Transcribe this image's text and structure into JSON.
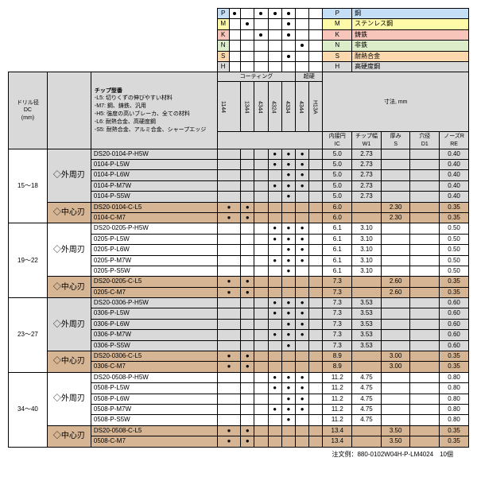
{
  "materials": [
    {
      "code": "P",
      "color": "blue",
      "name": "鋼",
      "dots": [
        "●",
        "",
        "●",
        "●",
        "●",
        ""
      ]
    },
    {
      "code": "M",
      "color": "yellow",
      "name": "ステンレス鋼",
      "dots": [
        "",
        "●",
        "",
        "",
        "●",
        ""
      ]
    },
    {
      "code": "K",
      "color": "red",
      "name": "鋳鉄",
      "dots": [
        "",
        "",
        "●",
        "",
        "●",
        ""
      ]
    },
    {
      "code": "N",
      "color": "green",
      "name": "非鉄",
      "dots": [
        "",
        "",
        "",
        "",
        "",
        "●"
      ]
    },
    {
      "code": "S",
      "color": "orange",
      "name": "耐熱合金",
      "dots": [
        "",
        "",
        "",
        "",
        "●",
        ""
      ]
    },
    {
      "code": "H",
      "color": "gray",
      "name": "高硬度鋼",
      "dots": [
        "",
        "",
        "",
        "",
        "",
        ""
      ]
    }
  ],
  "col_headers": {
    "drill": "ドリル径\nDC\n(mm)",
    "chip_title": "チップ型番",
    "notes": "-L5: 切りくずの伸びやすい材料\n-M7: 鋼、鋳鉄、汎用\n-H5: 強度の高いブレーカ、全ての材料\n-L6: 耐熱合金、高硬度鋼\n-S5: 耐熱合金、アルミ合金、シャープエッジ",
    "coating": "コーティング",
    "carbide": "超硬",
    "dims": "寸法, mm",
    "grades": [
      "1144",
      "1344",
      "4344",
      "4324",
      "4334",
      "4344",
      "H13A"
    ],
    "dim_labels": [
      [
        "内接円",
        "IC"
      ],
      [
        "チップ幅",
        "W1"
      ],
      [
        "厚み",
        "S"
      ],
      [
        "穴径",
        "D1"
      ],
      [
        "ノーズR",
        "RE"
      ]
    ]
  },
  "groups": [
    {
      "dc": "15～18",
      "outer": "◇外周刃",
      "inner": "◇中心刃",
      "outer_color": "gray",
      "inner_color": "tan",
      "outer_rows": [
        {
          "chip": "DS20-0104-P-H5W",
          "g": [
            "",
            "",
            "",
            "●",
            "●",
            "●",
            ""
          ],
          "d": [
            "5.0",
            "2.73",
            "",
            "",
            "0.40"
          ]
        },
        {
          "chip": "0104-P-L5W",
          "g": [
            "",
            "",
            "",
            "●",
            "●",
            "●",
            ""
          ],
          "d": [
            "5.0",
            "2.73",
            "",
            "",
            "0.40"
          ]
        },
        {
          "chip": "0104-P-L6W",
          "g": [
            "",
            "",
            "",
            "",
            "●",
            "●",
            ""
          ],
          "d": [
            "5.0",
            "2.73",
            "",
            "",
            "0.40"
          ]
        },
        {
          "chip": "0104-P-M7W",
          "g": [
            "",
            "",
            "",
            "●",
            "●",
            "●",
            ""
          ],
          "d": [
            "5.0",
            "2.73",
            "",
            "",
            "0.40"
          ]
        },
        {
          "chip": "0104-P-S5W",
          "g": [
            "",
            "",
            "",
            "",
            "●",
            "",
            ""
          ],
          "d": [
            "5.0",
            "2.73",
            "",
            "",
            "0.40"
          ]
        }
      ],
      "inner_rows": [
        {
          "chip": "DS20-0104-C-L5",
          "g": [
            "●",
            "●",
            "",
            "",
            "",
            "",
            ""
          ],
          "d": [
            "6.0",
            "",
            "2.30",
            "",
            "0.35"
          ]
        },
        {
          "chip": "0104-C-M7",
          "g": [
            "●",
            "●",
            "",
            "",
            "",
            "",
            ""
          ],
          "d": [
            "6.0",
            "",
            "2.30",
            "",
            "0.35"
          ]
        }
      ]
    },
    {
      "dc": "19～22",
      "outer": "◇外周刃",
      "inner": "◇中心刃",
      "outer_color": "",
      "inner_color": "tan",
      "outer_rows": [
        {
          "chip": "DS20-0205-P-H5W",
          "g": [
            "",
            "",
            "",
            "●",
            "●",
            "●",
            ""
          ],
          "d": [
            "6.1",
            "3.10",
            "",
            "",
            "0.50"
          ]
        },
        {
          "chip": "0205-P-L5W",
          "g": [
            "",
            "",
            "",
            "●",
            "●",
            "●",
            ""
          ],
          "d": [
            "6.1",
            "3.10",
            "",
            "",
            "0.50"
          ]
        },
        {
          "chip": "0205-P-L6W",
          "g": [
            "",
            "",
            "",
            "",
            "●",
            "●",
            ""
          ],
          "d": [
            "6.1",
            "3.10",
            "",
            "",
            "0.50"
          ]
        },
        {
          "chip": "0205-P-M7W",
          "g": [
            "",
            "",
            "",
            "●",
            "●",
            "●",
            ""
          ],
          "d": [
            "6.1",
            "3.10",
            "",
            "",
            "0.50"
          ]
        },
        {
          "chip": "0205-P-S5W",
          "g": [
            "",
            "",
            "",
            "",
            "●",
            "",
            ""
          ],
          "d": [
            "6.1",
            "3.10",
            "",
            "",
            "0.50"
          ]
        }
      ],
      "inner_rows": [
        {
          "chip": "DS20-0205-C-L5",
          "g": [
            "●",
            "●",
            "",
            "",
            "",
            "",
            ""
          ],
          "d": [
            "7.3",
            "",
            "2.60",
            "",
            "0.35"
          ]
        },
        {
          "chip": "0205-C-M7",
          "g": [
            "●",
            "●",
            "",
            "",
            "",
            "",
            ""
          ],
          "d": [
            "7.3",
            "",
            "2.60",
            "",
            "0.35"
          ]
        }
      ]
    },
    {
      "dc": "23～27",
      "outer": "◇外周刃",
      "inner": "◇中心刃",
      "outer_color": "gray",
      "inner_color": "tan",
      "outer_rows": [
        {
          "chip": "DS20-0306-P-H5W",
          "g": [
            "",
            "",
            "",
            "●",
            "●",
            "●",
            ""
          ],
          "d": [
            "7.3",
            "3.53",
            "",
            "",
            "0.60"
          ]
        },
        {
          "chip": "0306-P-L5W",
          "g": [
            "",
            "",
            "",
            "●",
            "●",
            "●",
            ""
          ],
          "d": [
            "7.3",
            "3.53",
            "",
            "",
            "0.60"
          ]
        },
        {
          "chip": "0306-P-L6W",
          "g": [
            "",
            "",
            "",
            "",
            "●",
            "●",
            ""
          ],
          "d": [
            "7.3",
            "3.53",
            "",
            "",
            "0.60"
          ]
        },
        {
          "chip": "0306-P-M7W",
          "g": [
            "",
            "",
            "",
            "●",
            "●",
            "●",
            ""
          ],
          "d": [
            "7.3",
            "3.53",
            "",
            "",
            "0.60"
          ]
        },
        {
          "chip": "0306-P-S5W",
          "g": [
            "",
            "",
            "",
            "",
            "●",
            "",
            ""
          ],
          "d": [
            "7.3",
            "3.53",
            "",
            "",
            "0.60"
          ]
        }
      ],
      "inner_rows": [
        {
          "chip": "DS20-0306-C-L5",
          "g": [
            "●",
            "●",
            "",
            "",
            "",
            "",
            ""
          ],
          "d": [
            "8.9",
            "",
            "3.00",
            "",
            "0.35"
          ]
        },
        {
          "chip": "0306-C-M7",
          "g": [
            "●",
            "●",
            "",
            "",
            "",
            "",
            ""
          ],
          "d": [
            "8.9",
            "",
            "3.00",
            "",
            "0.35"
          ]
        }
      ]
    },
    {
      "dc": "34～40",
      "outer": "◇外周刃",
      "inner": "◇中心刃",
      "outer_color": "",
      "inner_color": "tan",
      "outer_rows": [
        {
          "chip": "DS20-0508-P-H5W",
          "g": [
            "",
            "",
            "",
            "●",
            "●",
            "●",
            ""
          ],
          "d": [
            "11.2",
            "4.75",
            "",
            "",
            "0.80"
          ]
        },
        {
          "chip": "0508-P-L5W",
          "g": [
            "",
            "",
            "",
            "●",
            "●",
            "●",
            ""
          ],
          "d": [
            "11.2",
            "4.75",
            "",
            "",
            "0.80"
          ]
        },
        {
          "chip": "0508-P-L6W",
          "g": [
            "",
            "",
            "",
            "",
            "●",
            "●",
            ""
          ],
          "d": [
            "11.2",
            "4.75",
            "",
            "",
            "0.80"
          ]
        },
        {
          "chip": "0508-P-M7W",
          "g": [
            "",
            "",
            "",
            "●",
            "●",
            "●",
            ""
          ],
          "d": [
            "11.2",
            "4.75",
            "",
            "",
            "0.80"
          ]
        },
        {
          "chip": "0508-P-S5W",
          "g": [
            "",
            "",
            "",
            "",
            "●",
            "",
            ""
          ],
          "d": [
            "11.2",
            "4.75",
            "",
            "",
            "0.80"
          ]
        }
      ],
      "inner_rows": [
        {
          "chip": "DS20-0508-C-L5",
          "g": [
            "●",
            "●",
            "",
            "",
            "",
            "",
            ""
          ],
          "d": [
            "13.4",
            "",
            "3.50",
            "",
            "0.35"
          ]
        },
        {
          "chip": "0508-C-M7",
          "g": [
            "●",
            "●",
            "",
            "",
            "",
            "",
            ""
          ],
          "d": [
            "13.4",
            "",
            "3.50",
            "",
            "0.35"
          ]
        }
      ]
    }
  ],
  "footer": "注文例：880-0102W04H-P-LM4024　10個"
}
